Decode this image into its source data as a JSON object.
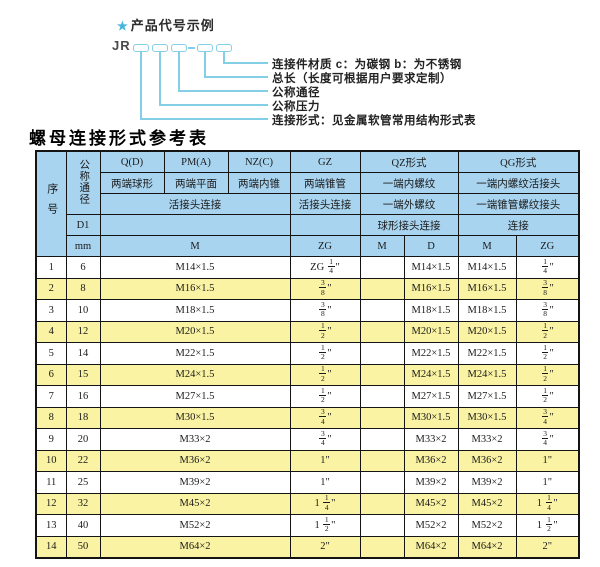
{
  "top": {
    "star": "★",
    "example_title": "产品代号示例",
    "code_prefix": "JR",
    "labels": [
      "连接件材质  c：为碳钢  b：为不锈钢",
      "总长（长度可根据用户要求定制）",
      "公称通径",
      "公称压力",
      "连接形式：见金属软管常用结构形式表"
    ]
  },
  "table_title": "螺母连接形式参考表",
  "colors": {
    "header_blue": "#a8d4f0",
    "row_yellow": "#faf3a3",
    "line_cyan": "#85cfe6",
    "border": "#141414"
  },
  "table": {
    "header": {
      "seq": "序号",
      "dn": "公称通径",
      "d1": "D1",
      "mm": "mm",
      "col_q": "Q(D)",
      "col_pm": "PM(A)",
      "col_nz": "NZ(C)",
      "col_gz": "GZ",
      "col_qz": "QZ形式",
      "col_qg": "QG形式",
      "q_desc": "两端球形",
      "pm_desc": "两端平面",
      "nz_desc": "两端内锥",
      "gz_desc": "两端锥管",
      "qz_desc1": "一端内螺纹",
      "qg_desc1": "一端内螺纹活接头",
      "union_conn": "活接头连接",
      "gz_conn": "活接头连接",
      "qz_desc2": "一端外螺纹",
      "qg_desc2": "一端锥管螺纹接头",
      "qz_conn": "球形接头连接",
      "qg_conn": "连接",
      "unit_m": "M",
      "unit_zg": "ZG",
      "qz_unit_m": "M",
      "qz_unit_d": "D",
      "qg_unit_m": "M",
      "qg_unit_zg": "ZG"
    },
    "rows": [
      {
        "seq": "1",
        "dn": "6",
        "m": "M14×1.5",
        "gz": "ZG 1/4\"",
        "qz_m": "",
        "qz_d": "M14×1.5",
        "qg_m": "M14×1.5",
        "qg_zg": "1/4\""
      },
      {
        "seq": "2",
        "dn": "8",
        "m": "M16×1.5",
        "gz": "3/8\"",
        "qz_m": "",
        "qz_d": "M16×1.5",
        "qg_m": "M16×1.5",
        "qg_zg": "3/8\""
      },
      {
        "seq": "3",
        "dn": "10",
        "m": "M18×1.5",
        "gz": "3/8\"",
        "qz_m": "",
        "qz_d": "M18×1.5",
        "qg_m": "M18×1.5",
        "qg_zg": "3/8\""
      },
      {
        "seq": "4",
        "dn": "12",
        "m": "M20×1.5",
        "gz": "1/2\"",
        "qz_m": "",
        "qz_d": "M20×1.5",
        "qg_m": "M20×1.5",
        "qg_zg": "1/2\""
      },
      {
        "seq": "5",
        "dn": "14",
        "m": "M22×1.5",
        "gz": "1/2\"",
        "qz_m": "",
        "qz_d": "M22×1.5",
        "qg_m": "M22×1.5",
        "qg_zg": "1/2\""
      },
      {
        "seq": "6",
        "dn": "15",
        "m": "M24×1.5",
        "gz": "1/2\"",
        "qz_m": "",
        "qz_d": "M24×1.5",
        "qg_m": "M24×1.5",
        "qg_zg": "1/2\""
      },
      {
        "seq": "7",
        "dn": "16",
        "m": "M27×1.5",
        "gz": "1/2\"",
        "qz_m": "",
        "qz_d": "M27×1.5",
        "qg_m": "M27×1.5",
        "qg_zg": "1/2\""
      },
      {
        "seq": "8",
        "dn": "18",
        "m": "M30×1.5",
        "gz": "3/4\"",
        "qz_m": "",
        "qz_d": "M30×1.5",
        "qg_m": "M30×1.5",
        "qg_zg": "3/4\""
      },
      {
        "seq": "9",
        "dn": "20",
        "m": "M33×2",
        "gz": "3/4\"",
        "qz_m": "",
        "qz_d": "M33×2",
        "qg_m": "M33×2",
        "qg_zg": "3/4\""
      },
      {
        "seq": "10",
        "dn": "22",
        "m": "M36×2",
        "gz": "1\"",
        "qz_m": "",
        "qz_d": "M36×2",
        "qg_m": "M36×2",
        "qg_zg": "1\""
      },
      {
        "seq": "11",
        "dn": "25",
        "m": "M39×2",
        "gz": "1\"",
        "qz_m": "",
        "qz_d": "M39×2",
        "qg_m": "M39×2",
        "qg_zg": "1\""
      },
      {
        "seq": "12",
        "dn": "32",
        "m": "M45×2",
        "gz": "1 1/4\"",
        "qz_m": "",
        "qz_d": "M45×2",
        "qg_m": "M45×2",
        "qg_zg": "1 1/4\""
      },
      {
        "seq": "13",
        "dn": "40",
        "m": "M52×2",
        "gz": "1 1/2\"",
        "qz_m": "",
        "qz_d": "M52×2",
        "qg_m": "M52×2",
        "qg_zg": "1 1/2\""
      },
      {
        "seq": "14",
        "dn": "50",
        "m": "M64×2",
        "gz": "2\"",
        "qz_m": "",
        "qz_d": "M64×2",
        "qg_m": "M64×2",
        "qg_zg": "2\""
      }
    ]
  }
}
